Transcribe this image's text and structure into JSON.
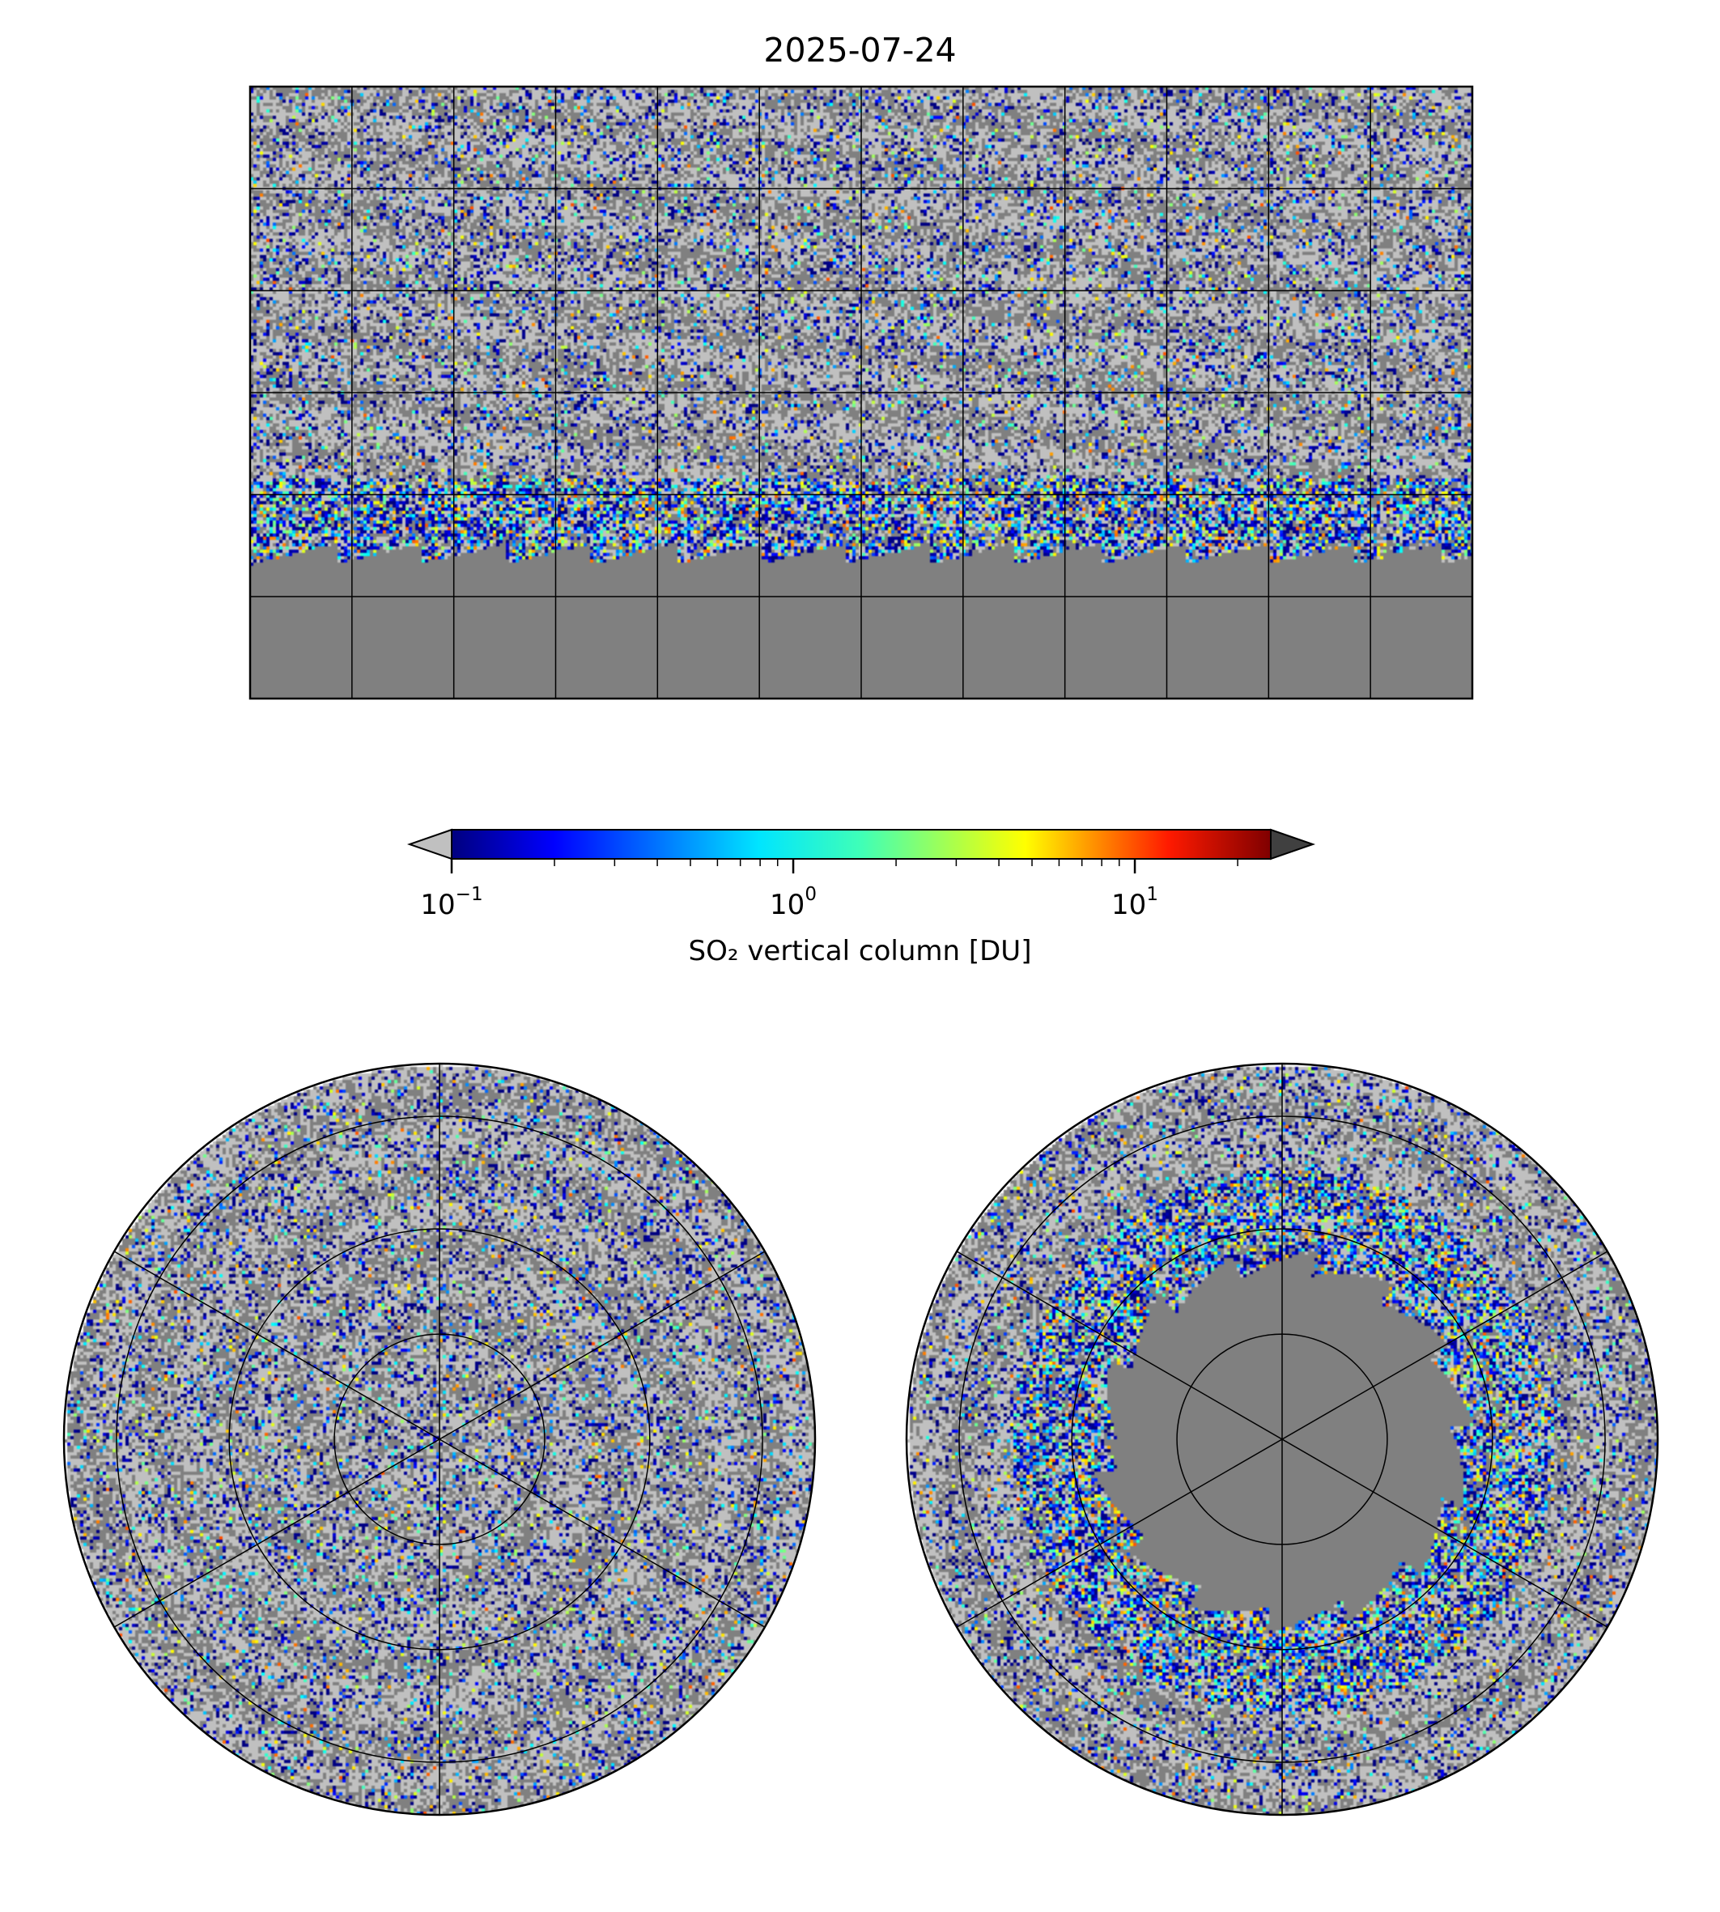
{
  "chart_data": {
    "type": "heatmap",
    "title": "2025-07-24",
    "panels": [
      {
        "name": "global",
        "projection": "plate-carree",
        "lon_range": [
          -180,
          180
        ],
        "lat_range": [
          -90,
          90
        ],
        "gridline_spacing_deg": 30
      },
      {
        "name": "north-polar",
        "projection": "north-polar-stereographic",
        "gridline_spacing_deg": 30
      },
      {
        "name": "south-polar",
        "projection": "south-polar-stereographic",
        "gridline_spacing_deg": 30
      }
    ],
    "colorbar": {
      "label": "SO₂ vertical column [DU]",
      "scale": "log",
      "range": [
        0.1,
        25
      ],
      "colormap": "jet",
      "extend": "both",
      "under_color": "#c0c0c0",
      "over_color": "#404040",
      "nodata_color": "#808080",
      "ticks": [
        {
          "base": "10",
          "exp": "−1",
          "value": 0.1
        },
        {
          "base": "10",
          "exp": "0",
          "value": 1
        },
        {
          "base": "10",
          "exp": "1",
          "value": 10
        }
      ]
    },
    "valid_data_southern_limit_lat": -50
  }
}
